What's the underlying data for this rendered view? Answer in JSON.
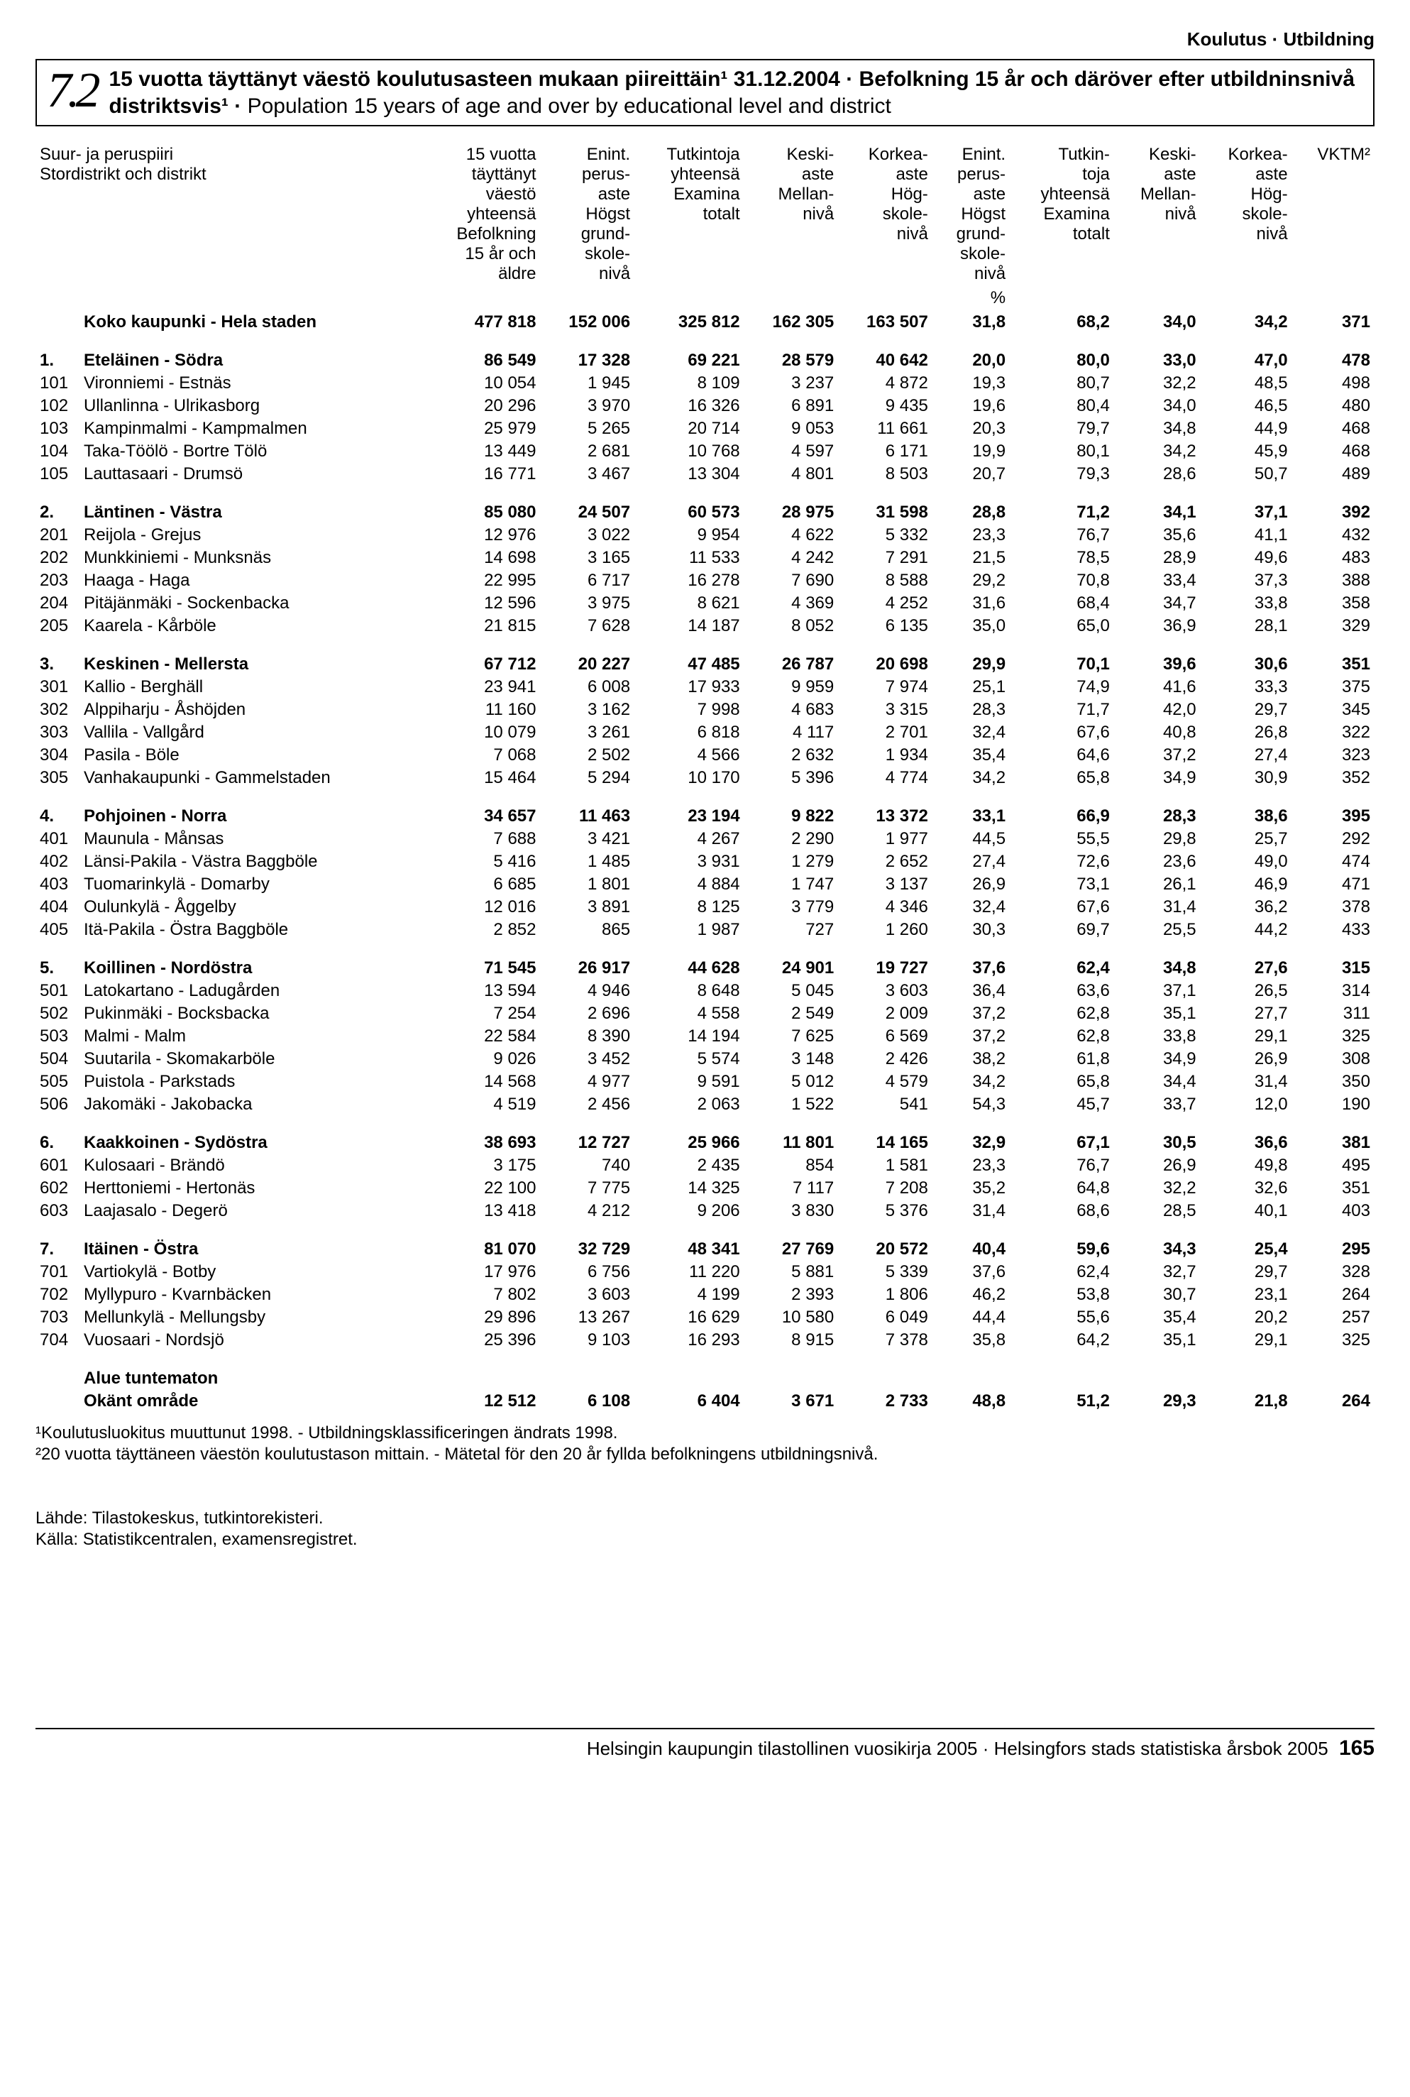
{
  "header_tag": "Koulutus · Utbildning",
  "section_number": "7.2",
  "title_bold1": "15 vuotta täyttänyt väestö koulutusasteen mukaan piireittäin¹ 31.12.2004 · Befolkning 15 år och däröver efter utbildninsnivå distriktsvis¹ ·",
  "title_plain": " Population 15 years of age and over by educational level and district",
  "col_headers": {
    "c0": "Suur- ja peruspiiri\nStordistrikt och distrikt",
    "c1": "15 vuotta\ntäyttänyt\nväestö\nyhteensä\nBefolkning\n15 år och\näldre",
    "c2": "Enint.\nperus-\naste\nHögst\ngrund-\nskole-\nnivå",
    "c3": "Tutkintoja\nyhteensä\nExamina\ntotalt",
    "c4": "Keski-\naste\nMellan-\nnivå",
    "c5": "Korkea-\naste\nHög-\nskole-\nnivå",
    "c6": "Enint.\nperus-\naste\nHögst\ngrund-\nskole-\nnivå",
    "c7": "Tutkin-\ntoja\nyhteensä\nExamina\ntotalt",
    "c8": "Keski-\naste\nMellan-\nnivå",
    "c9": "Korkea-\naste\nHög-\nskole-\nnivå",
    "c10": "VKTM²"
  },
  "pct_label": "%",
  "city_total": {
    "label": "Koko kaupunki - Hela staden",
    "v": [
      "477 818",
      "152 006",
      "325 812",
      "162 305",
      "163 507",
      "31,8",
      "68,2",
      "34,0",
      "34,2",
      "371"
    ]
  },
  "groups": [
    {
      "head": {
        "code": "1.",
        "label": "Eteläinen - Södra",
        "v": [
          "86 549",
          "17 328",
          "69 221",
          "28 579",
          "40 642",
          "20,0",
          "80,0",
          "33,0",
          "47,0",
          "478"
        ]
      },
      "rows": [
        {
          "code": "101",
          "label": "Vironniemi - Estnäs",
          "v": [
            "10 054",
            "1 945",
            "8 109",
            "3 237",
            "4 872",
            "19,3",
            "80,7",
            "32,2",
            "48,5",
            "498"
          ]
        },
        {
          "code": "102",
          "label": "Ullanlinna - Ulrikasborg",
          "v": [
            "20 296",
            "3 970",
            "16 326",
            "6 891",
            "9 435",
            "19,6",
            "80,4",
            "34,0",
            "46,5",
            "480"
          ]
        },
        {
          "code": "103",
          "label": "Kampinmalmi - Kampmalmen",
          "v": [
            "25 979",
            "5 265",
            "20 714",
            "9 053",
            "11 661",
            "20,3",
            "79,7",
            "34,8",
            "44,9",
            "468"
          ]
        },
        {
          "code": "104",
          "label": "Taka-Töölö - Bortre Tölö",
          "v": [
            "13 449",
            "2 681",
            "10 768",
            "4 597",
            "6 171",
            "19,9",
            "80,1",
            "34,2",
            "45,9",
            "468"
          ]
        },
        {
          "code": "105",
          "label": "Lauttasaari - Drumsö",
          "v": [
            "16 771",
            "3 467",
            "13 304",
            "4 801",
            "8 503",
            "20,7",
            "79,3",
            "28,6",
            "50,7",
            "489"
          ]
        }
      ]
    },
    {
      "head": {
        "code": "2.",
        "label": "Läntinen - Västra",
        "v": [
          "85 080",
          "24 507",
          "60 573",
          "28 975",
          "31 598",
          "28,8",
          "71,2",
          "34,1",
          "37,1",
          "392"
        ]
      },
      "rows": [
        {
          "code": "201",
          "label": "Reijola - Grejus",
          "v": [
            "12 976",
            "3 022",
            "9 954",
            "4 622",
            "5 332",
            "23,3",
            "76,7",
            "35,6",
            "41,1",
            "432"
          ]
        },
        {
          "code": "202",
          "label": "Munkkiniemi - Munksnäs",
          "v": [
            "14 698",
            "3 165",
            "11 533",
            "4 242",
            "7 291",
            "21,5",
            "78,5",
            "28,9",
            "49,6",
            "483"
          ]
        },
        {
          "code": "203",
          "label": "Haaga - Haga",
          "v": [
            "22 995",
            "6 717",
            "16 278",
            "7 690",
            "8 588",
            "29,2",
            "70,8",
            "33,4",
            "37,3",
            "388"
          ]
        },
        {
          "code": "204",
          "label": "Pitäjänmäki - Sockenbacka",
          "v": [
            "12 596",
            "3 975",
            "8 621",
            "4 369",
            "4 252",
            "31,6",
            "68,4",
            "34,7",
            "33,8",
            "358"
          ]
        },
        {
          "code": "205",
          "label": "Kaarela - Kårböle",
          "v": [
            "21 815",
            "7 628",
            "14 187",
            "8 052",
            "6 135",
            "35,0",
            "65,0",
            "36,9",
            "28,1",
            "329"
          ]
        }
      ]
    },
    {
      "head": {
        "code": "3.",
        "label": "Keskinen - Mellersta",
        "v": [
          "67 712",
          "20 227",
          "47 485",
          "26 787",
          "20 698",
          "29,9",
          "70,1",
          "39,6",
          "30,6",
          "351"
        ]
      },
      "rows": [
        {
          "code": "301",
          "label": "Kallio - Berghäll",
          "v": [
            "23 941",
            "6 008",
            "17 933",
            "9 959",
            "7 974",
            "25,1",
            "74,9",
            "41,6",
            "33,3",
            "375"
          ]
        },
        {
          "code": "302",
          "label": "Alppiharju - Åshöjden",
          "v": [
            "11 160",
            "3 162",
            "7 998",
            "4 683",
            "3 315",
            "28,3",
            "71,7",
            "42,0",
            "29,7",
            "345"
          ]
        },
        {
          "code": "303",
          "label": "Vallila - Vallgård",
          "v": [
            "10 079",
            "3 261",
            "6 818",
            "4 117",
            "2 701",
            "32,4",
            "67,6",
            "40,8",
            "26,8",
            "322"
          ]
        },
        {
          "code": "304",
          "label": "Pasila - Böle",
          "v": [
            "7 068",
            "2 502",
            "4 566",
            "2 632",
            "1 934",
            "35,4",
            "64,6",
            "37,2",
            "27,4",
            "323"
          ]
        },
        {
          "code": "305",
          "label": "Vanhakaupunki - Gammelstaden",
          "v": [
            "15 464",
            "5 294",
            "10 170",
            "5 396",
            "4 774",
            "34,2",
            "65,8",
            "34,9",
            "30,9",
            "352"
          ]
        }
      ]
    },
    {
      "head": {
        "code": "4.",
        "label": "Pohjoinen - Norra",
        "v": [
          "34 657",
          "11 463",
          "23 194",
          "9 822",
          "13 372",
          "33,1",
          "66,9",
          "28,3",
          "38,6",
          "395"
        ]
      },
      "rows": [
        {
          "code": "401",
          "label": "Maunula - Månsas",
          "v": [
            "7 688",
            "3 421",
            "4 267",
            "2 290",
            "1 977",
            "44,5",
            "55,5",
            "29,8",
            "25,7",
            "292"
          ]
        },
        {
          "code": "402",
          "label": "Länsi-Pakila - Västra Baggböle",
          "v": [
            "5 416",
            "1 485",
            "3 931",
            "1 279",
            "2 652",
            "27,4",
            "72,6",
            "23,6",
            "49,0",
            "474"
          ]
        },
        {
          "code": "403",
          "label": "Tuomarinkylä - Domarby",
          "v": [
            "6 685",
            "1 801",
            "4 884",
            "1 747",
            "3 137",
            "26,9",
            "73,1",
            "26,1",
            "46,9",
            "471"
          ]
        },
        {
          "code": "404",
          "label": "Oulunkylä - Åggelby",
          "v": [
            "12 016",
            "3 891",
            "8 125",
            "3 779",
            "4 346",
            "32,4",
            "67,6",
            "31,4",
            "36,2",
            "378"
          ]
        },
        {
          "code": "405",
          "label": "Itä-Pakila - Östra Baggböle",
          "v": [
            "2 852",
            "865",
            "1 987",
            "727",
            "1 260",
            "30,3",
            "69,7",
            "25,5",
            "44,2",
            "433"
          ]
        }
      ]
    },
    {
      "head": {
        "code": "5.",
        "label": "Koillinen - Nordöstra",
        "v": [
          "71 545",
          "26 917",
          "44 628",
          "24 901",
          "19 727",
          "37,6",
          "62,4",
          "34,8",
          "27,6",
          "315"
        ]
      },
      "rows": [
        {
          "code": "501",
          "label": "Latokartano - Ladugården",
          "v": [
            "13 594",
            "4 946",
            "8 648",
            "5 045",
            "3 603",
            "36,4",
            "63,6",
            "37,1",
            "26,5",
            "314"
          ]
        },
        {
          "code": "502",
          "label": "Pukinmäki - Bocksbacka",
          "v": [
            "7 254",
            "2 696",
            "4 558",
            "2 549",
            "2 009",
            "37,2",
            "62,8",
            "35,1",
            "27,7",
            "311"
          ]
        },
        {
          "code": "503",
          "label": "Malmi - Malm",
          "v": [
            "22 584",
            "8 390",
            "14 194",
            "7 625",
            "6 569",
            "37,2",
            "62,8",
            "33,8",
            "29,1",
            "325"
          ]
        },
        {
          "code": "504",
          "label": "Suutarila - Skomakarböle",
          "v": [
            "9 026",
            "3 452",
            "5 574",
            "3 148",
            "2 426",
            "38,2",
            "61,8",
            "34,9",
            "26,9",
            "308"
          ]
        },
        {
          "code": "505",
          "label": "Puistola - Parkstads",
          "v": [
            "14 568",
            "4 977",
            "9 591",
            "5 012",
            "4 579",
            "34,2",
            "65,8",
            "34,4",
            "31,4",
            "350"
          ]
        },
        {
          "code": "506",
          "label": "Jakomäki - Jakobacka",
          "v": [
            "4 519",
            "2 456",
            "2 063",
            "1 522",
            "541",
            "54,3",
            "45,7",
            "33,7",
            "12,0",
            "190"
          ]
        }
      ]
    },
    {
      "head": {
        "code": "6.",
        "label": "Kaakkoinen - Sydöstra",
        "v": [
          "38 693",
          "12 727",
          "25 966",
          "11 801",
          "14 165",
          "32,9",
          "67,1",
          "30,5",
          "36,6",
          "381"
        ]
      },
      "rows": [
        {
          "code": "601",
          "label": "Kulosaari - Brändö",
          "v": [
            "3 175",
            "740",
            "2 435",
            "854",
            "1 581",
            "23,3",
            "76,7",
            "26,9",
            "49,8",
            "495"
          ]
        },
        {
          "code": "602",
          "label": "Herttoniemi - Hertonäs",
          "v": [
            "22 100",
            "7 775",
            "14 325",
            "7 117",
            "7 208",
            "35,2",
            "64,8",
            "32,2",
            "32,6",
            "351"
          ]
        },
        {
          "code": "603",
          "label": "Laajasalo - Degerö",
          "v": [
            "13 418",
            "4 212",
            "9 206",
            "3 830",
            "5 376",
            "31,4",
            "68,6",
            "28,5",
            "40,1",
            "403"
          ]
        }
      ]
    },
    {
      "head": {
        "code": "7.",
        "label": "Itäinen - Östra",
        "v": [
          "81 070",
          "32 729",
          "48 341",
          "27 769",
          "20 572",
          "40,4",
          "59,6",
          "34,3",
          "25,4",
          "295"
        ]
      },
      "rows": [
        {
          "code": "701",
          "label": "Vartiokylä - Botby",
          "v": [
            "17 976",
            "6 756",
            "11 220",
            "5 881",
            "5 339",
            "37,6",
            "62,4",
            "32,7",
            "29,7",
            "328"
          ]
        },
        {
          "code": "702",
          "label": "Myllypuro - Kvarnbäcken",
          "v": [
            "7 802",
            "3 603",
            "4 199",
            "2 393",
            "1 806",
            "46,2",
            "53,8",
            "30,7",
            "23,1",
            "264"
          ]
        },
        {
          "code": "703",
          "label": "Mellunkylä - Mellungsby",
          "v": [
            "29 896",
            "13 267",
            "16 629",
            "10 580",
            "6 049",
            "44,4",
            "55,6",
            "35,4",
            "20,2",
            "257"
          ]
        },
        {
          "code": "704",
          "label": "Vuosaari - Nordsjö",
          "v": [
            "25 396",
            "9 103",
            "16 293",
            "8 915",
            "7 378",
            "35,8",
            "64,2",
            "35,1",
            "29,1",
            "325"
          ]
        }
      ]
    }
  ],
  "unknown": {
    "label1": "Alue tuntematon",
    "label2": "Okänt område",
    "v": [
      "12 512",
      "6 108",
      "6 404",
      "3 671",
      "2 733",
      "48,8",
      "51,2",
      "29,3",
      "21,8",
      "264"
    ]
  },
  "footnotes": [
    "¹Koulutusluokitus muuttunut 1998. - Utbildningsklassificeringen ändrats 1998.",
    "²20 vuotta täyttäneen väestön koulutustason mittain. - Mätetal för den 20 år fyllda befolkningens utbildningsnivå.",
    "",
    "Lähde: Tilastokeskus, tutkintorekisteri.",
    "Källa: Statistikcentralen, examensregistret."
  ],
  "footer_text": "Helsingin kaupungin tilastollinen vuosikirja 2005 · Helsingfors stads statistiska årsbok 2005",
  "page_number": "165"
}
